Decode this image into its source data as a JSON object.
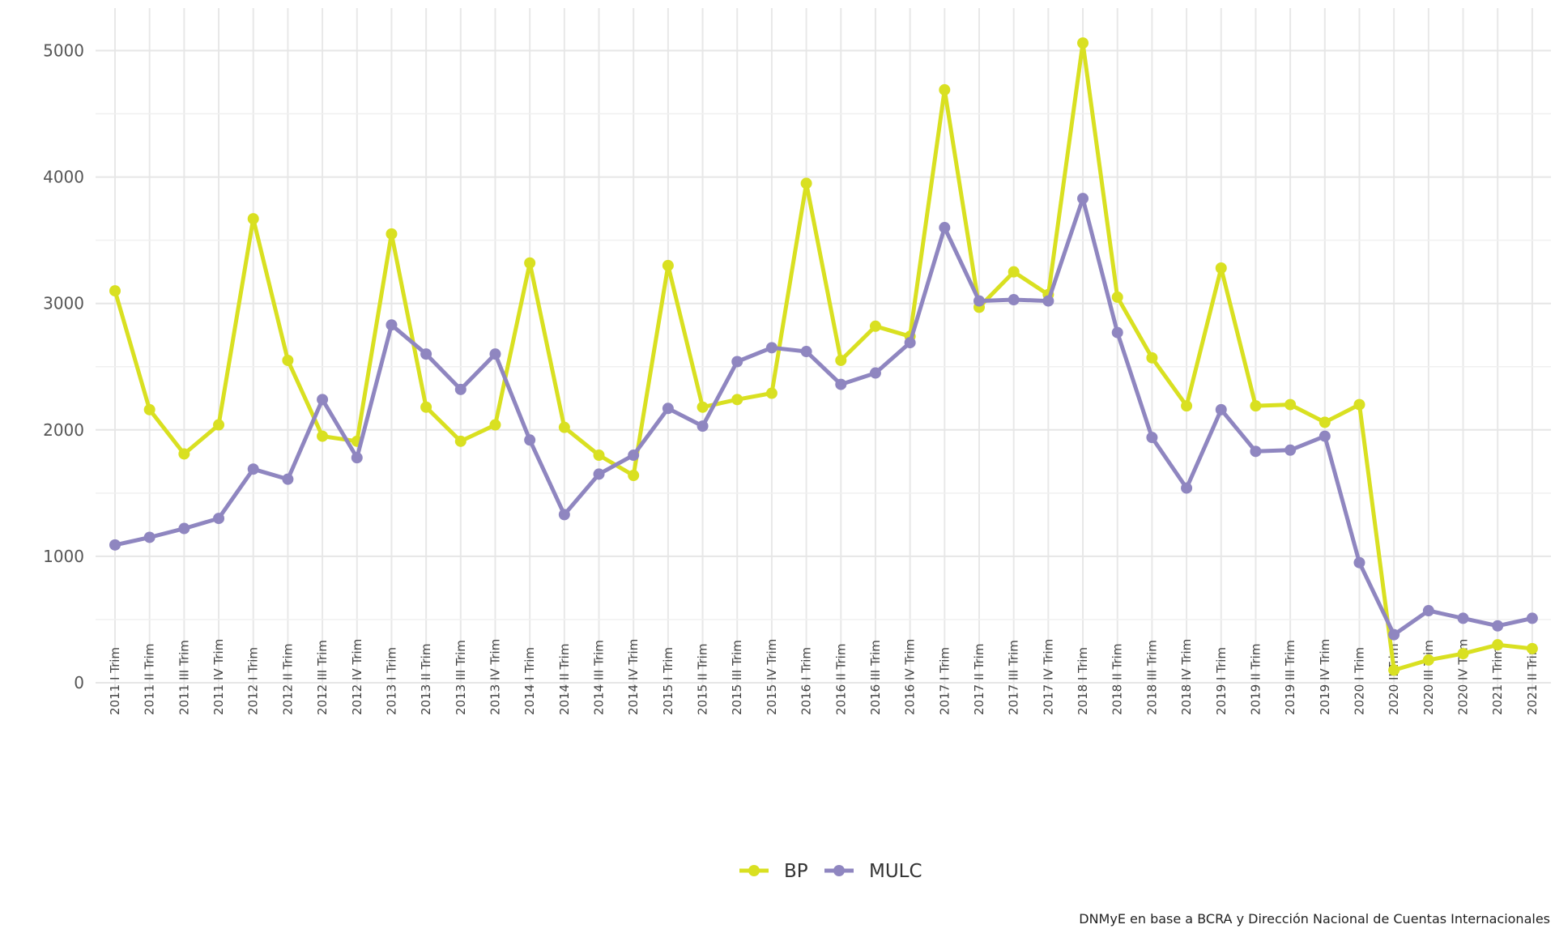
{
  "chart_data": {
    "type": "line",
    "title": "",
    "xlabel": "",
    "ylabel": "",
    "ylim": [
      0,
      5200
    ],
    "yticks": [
      0,
      1000,
      2000,
      3000,
      4000,
      5000
    ],
    "grid": true,
    "legend_position": "bottom",
    "categories": [
      "2011 I Trim",
      "2011 II Trim",
      "2011 III Trim",
      "2011 IV Trim",
      "2012 I Trim",
      "2012 II Trim",
      "2012 III Trim",
      "2012 IV Trim",
      "2013 I Trim",
      "2013 II Trim",
      "2013 III Trim",
      "2013 IV Trim",
      "2014 I Trim",
      "2014 II Trim",
      "2014 III Trim",
      "2014 IV Trim",
      "2015 I Trim",
      "2015 II Trim",
      "2015 III Trim",
      "2015 IV Trim",
      "2016 I Trim",
      "2016 II Trim",
      "2016 III Trim",
      "2016 IV Trim",
      "2017 I Trim",
      "2017 II Trim",
      "2017 III Trim",
      "2017 IV Trim",
      "2018 I Trim",
      "2018 II Trim",
      "2018 III Trim",
      "2018 IV Trim",
      "2019 I Trim",
      "2019 II Trim",
      "2019 III Trim",
      "2019 IV Trim",
      "2020 I Trim",
      "2020 II Trim",
      "2020 III Trim",
      "2020 IV Trim",
      "2021 I Trim",
      "2021 II Trim"
    ],
    "series": [
      {
        "name": "BP",
        "color": "#d9e021",
        "values": [
          3100,
          2160,
          1810,
          2040,
          3670,
          2550,
          1950,
          1910,
          3550,
          2180,
          1910,
          2040,
          3320,
          2020,
          1800,
          1640,
          3300,
          2180,
          2240,
          2290,
          3950,
          2550,
          2820,
          2740,
          4690,
          2970,
          3250,
          3070,
          5060,
          3050,
          2570,
          2190,
          3280,
          2190,
          2200,
          2060,
          2200,
          100,
          180,
          230,
          300,
          270
        ]
      },
      {
        "name": "MULC",
        "color": "#8f86c0",
        "values": [
          1090,
          1150,
          1220,
          1300,
          1690,
          1610,
          2240,
          1780,
          2830,
          2600,
          2320,
          2600,
          1920,
          1330,
          1650,
          1800,
          2170,
          2030,
          2540,
          2650,
          2620,
          2360,
          2450,
          2690,
          3600,
          3020,
          3030,
          3020,
          3830,
          2770,
          1940,
          1540,
          2160,
          1830,
          1840,
          1950,
          950,
          380,
          570,
          510,
          450,
          510
        ]
      }
    ]
  },
  "caption": "DNMyE en base a BCRA y Dirección Nacional de Cuentas Internacionales"
}
